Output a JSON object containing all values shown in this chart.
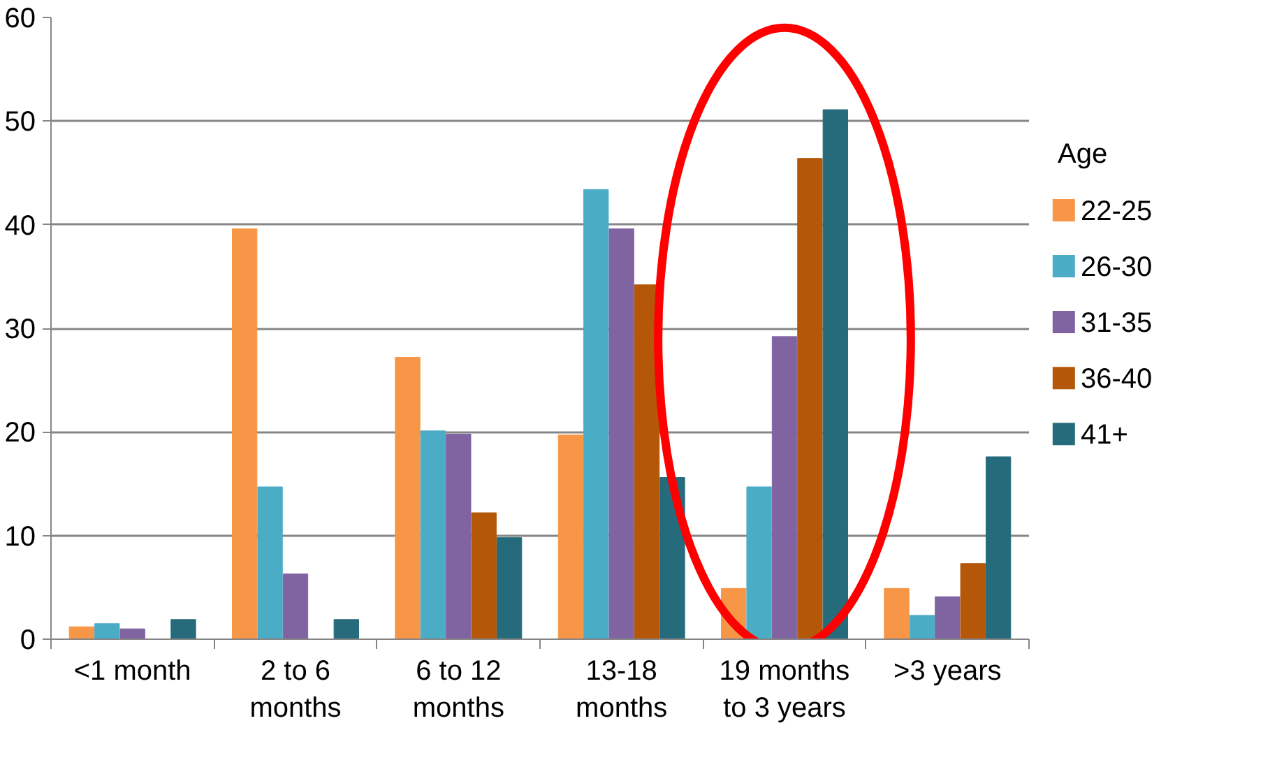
{
  "chart_data": {
    "type": "bar",
    "legend_title": "Age",
    "legend": "right",
    "grid": "y",
    "categories": [
      "<1 month",
      "2 to 6\nmonths",
      "6 to 12\nmonths",
      "13-18\nmonths",
      "19 months\nto 3 years",
      ">3 years"
    ],
    "ylim": [
      0,
      60
    ],
    "yticks": [
      0,
      10,
      20,
      30,
      40,
      50,
      60
    ],
    "series": [
      {
        "name": "22-25",
        "color": "#f79646",
        "values": [
          1.2,
          39.6,
          27.2,
          19.7,
          4.9,
          4.9
        ]
      },
      {
        "name": "26-30",
        "color": "#4bacc6",
        "values": [
          1.5,
          14.7,
          20.1,
          43.4,
          14.7,
          2.3
        ]
      },
      {
        "name": "31-35",
        "color": "#8064a2",
        "values": [
          1.0,
          6.3,
          19.8,
          39.6,
          29.2,
          4.1
        ]
      },
      {
        "name": "36-40",
        "color": "#b45708",
        "values": [
          0,
          0,
          12.2,
          34.2,
          46.4,
          7.3
        ]
      },
      {
        "name": "41+",
        "color": "#266b7b",
        "values": [
          1.9,
          1.9,
          9.8,
          15.6,
          51.1,
          17.6
        ]
      }
    ]
  }
}
